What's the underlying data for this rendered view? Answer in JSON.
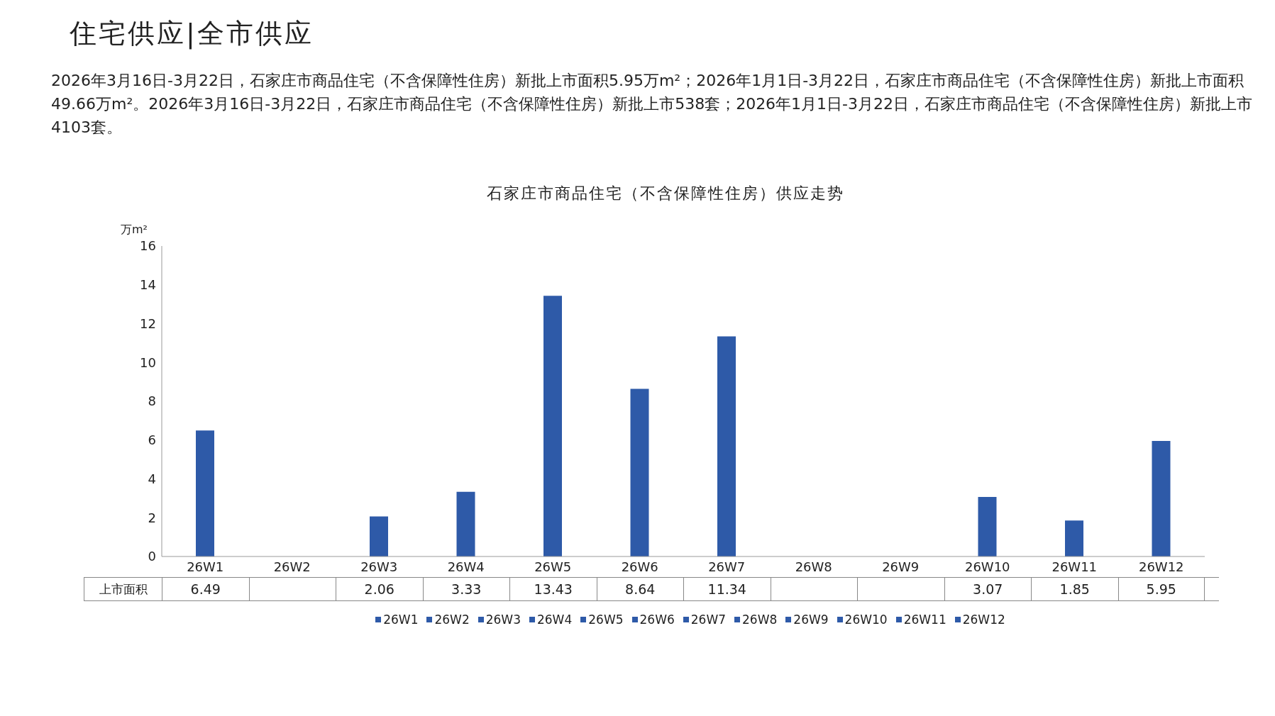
{
  "chart_data": {
    "type": "bar",
    "title": "住宅供应|全市供应",
    "subtitle": "2026年3月16日-3月22日，石家庄市商品住宅（不含保障性住房）新批上市面积5.95万m²；2026年1月1日-3月22日，石家庄市商品住宅（不含保障性住房）新批上市面积49.66万m²。2026年3月16日-3月22日，石家庄市商品住宅（不含保障性住房）新批上市538套；2026年1月1日-3月22日，石家庄市商品住宅（不含保障性住房）新批上市4103套。",
    "annotations": [
      "石家庄市商品住宅（不含保障性住房）供应走势"
    ],
    "ylabel": "万m²",
    "categories": [
      "26W1",
      "26W2",
      "26W3",
      "26W4",
      "26W5",
      "26W6",
      "26W7",
      "26W8",
      "26W9",
      "26W10",
      "26W11",
      "26W12"
    ],
    "series": [
      {
        "name": "上市面积",
        "color": "#2e5aa8",
        "values": [
          6.49,
          null,
          2.06,
          3.33,
          13.43,
          8.64,
          11.34,
          null,
          null,
          3.07,
          1.85,
          5.95
        ]
      }
    ],
    "ylim": [
      0,
      16
    ],
    "yticks": [
      0,
      2,
      4,
      6,
      8,
      10,
      12,
      14,
      16
    ],
    "grid": false,
    "legend": "bottom",
    "data_labels": true
  }
}
